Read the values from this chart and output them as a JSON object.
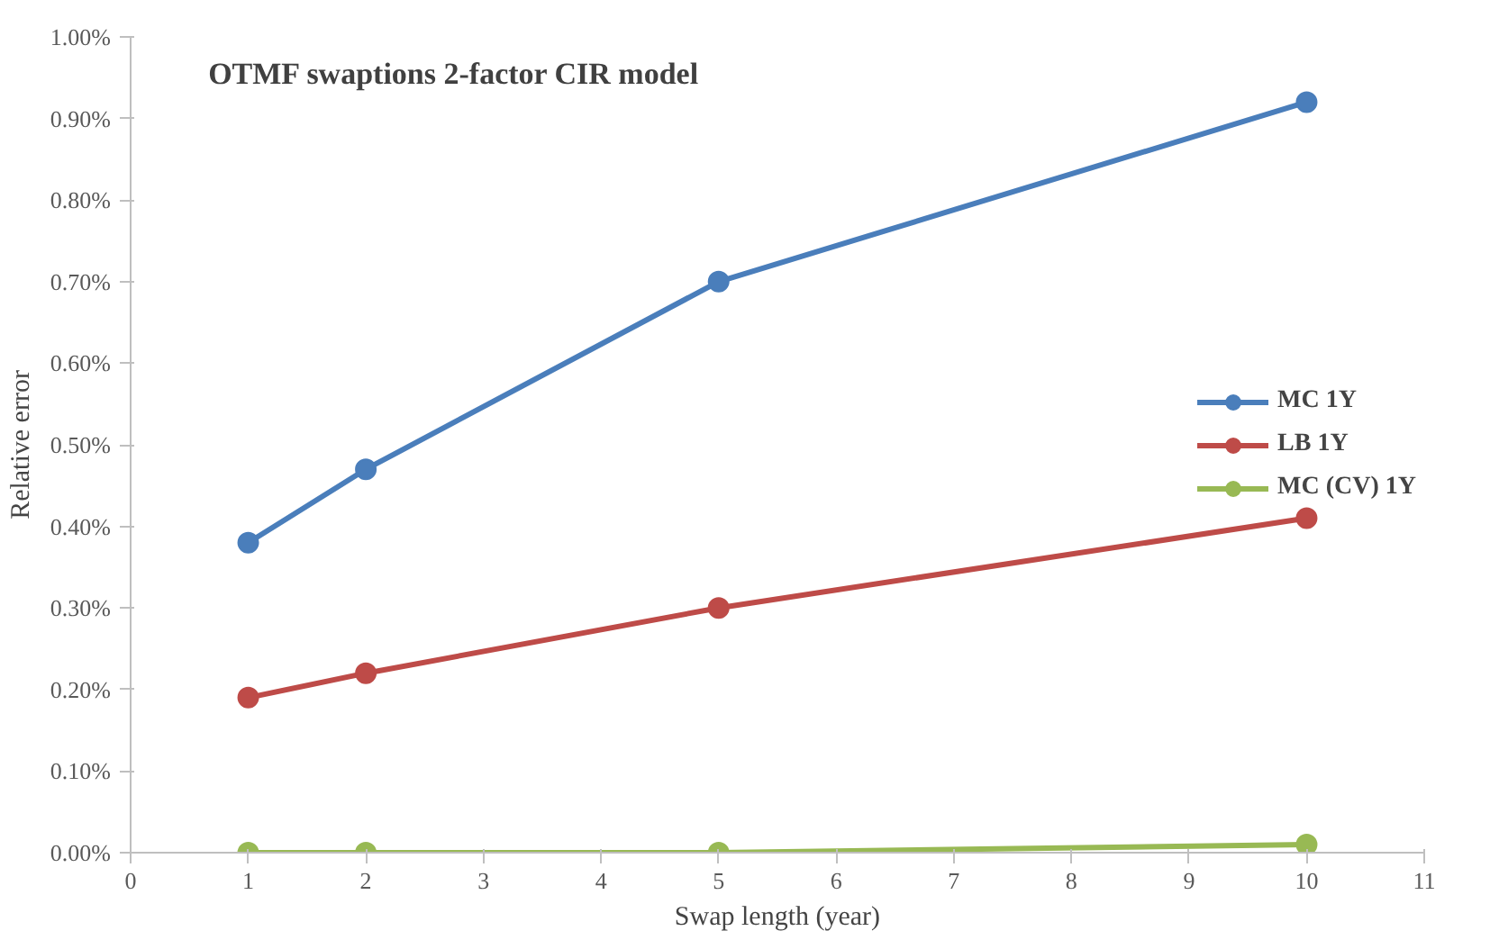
{
  "chart_data": {
    "type": "line",
    "title": "OTMF swaptions 2-factor CIR model",
    "xlabel": "Swap length (year)",
    "ylabel": "Relative error",
    "x": [
      1,
      2,
      5,
      10
    ],
    "series": [
      {
        "name": "MC 1Y",
        "color": "#4a7ebb",
        "values": [
          0.38,
          0.47,
          0.7,
          0.92
        ]
      },
      {
        "name": "LB 1Y",
        "color": "#be4b48",
        "values": [
          0.19,
          0.22,
          0.3,
          0.41
        ]
      },
      {
        "name": "MC (CV) 1Y",
        "color": "#98b954",
        "values": [
          0.0,
          0.0,
          0.0,
          0.01
        ]
      }
    ],
    "xlim": [
      0,
      11
    ],
    "xticks": [
      0,
      1,
      2,
      3,
      4,
      5,
      6,
      7,
      8,
      9,
      10,
      11
    ],
    "ylim": [
      0,
      1.0
    ],
    "yticks": [
      {
        "value": 0,
        "label": "0.00%"
      },
      {
        "value": 0.1,
        "label": "0.10%"
      },
      {
        "value": 0.2,
        "label": "0.20%"
      },
      {
        "value": 0.3,
        "label": "0.30%"
      },
      {
        "value": 0.4,
        "label": "0.40%"
      },
      {
        "value": 0.5,
        "label": "0.50%"
      },
      {
        "value": 0.6,
        "label": "0.60%"
      },
      {
        "value": 0.7,
        "label": "0.70%"
      },
      {
        "value": 0.8,
        "label": "0.80%"
      },
      {
        "value": 0.9,
        "label": "0.90%"
      },
      {
        "value": 1.0,
        "label": "1.00%"
      }
    ],
    "grid": false,
    "legend": "right",
    "marker": "circle",
    "line_style": "solid"
  }
}
